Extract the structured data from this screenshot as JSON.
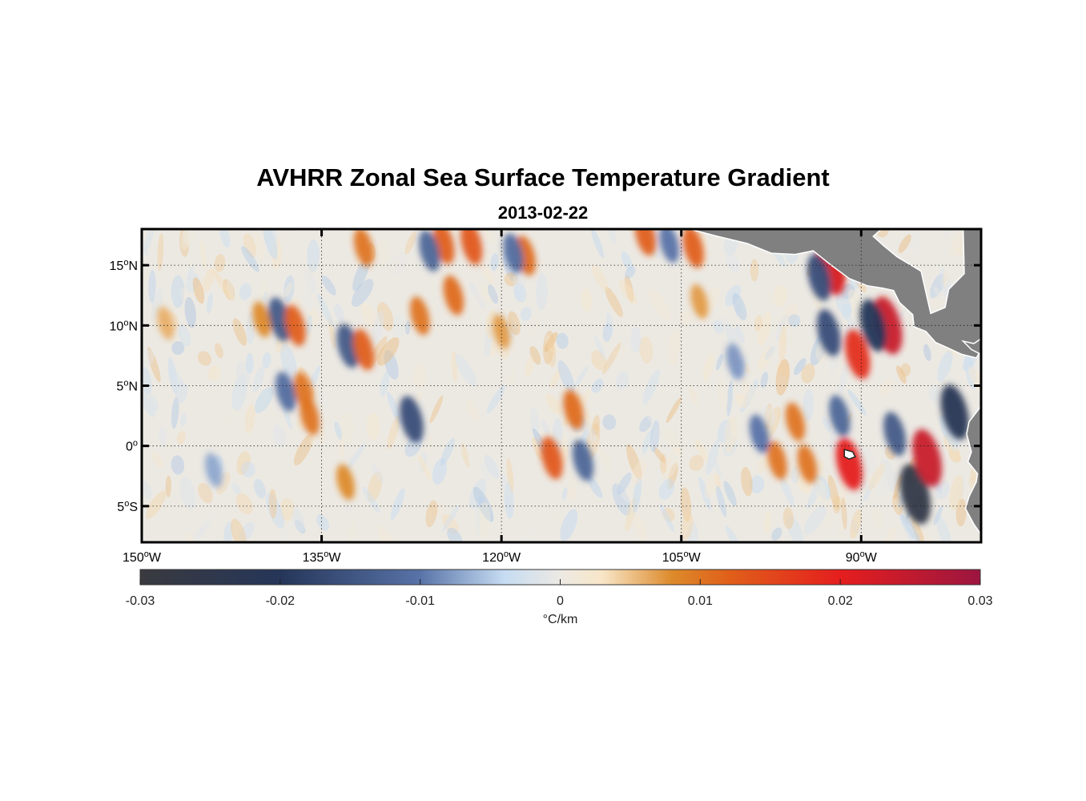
{
  "title": "AVHRR Zonal Sea Surface Temperature Gradient",
  "subtitle": "2013-02-22",
  "map": {
    "lon_range": [
      -150,
      -80
    ],
    "lat_range": [
      -8,
      18
    ],
    "lon_ticks": [
      {
        "value": -150,
        "num": "150",
        "hemi": "W"
      },
      {
        "value": -135,
        "num": "135",
        "hemi": "W"
      },
      {
        "value": -120,
        "num": "120",
        "hemi": "W"
      },
      {
        "value": -105,
        "num": "105",
        "hemi": "W"
      },
      {
        "value": -90,
        "num": "90",
        "hemi": "W"
      }
    ],
    "lat_ticks": [
      {
        "value": 15,
        "num": "15",
        "hemi": "N"
      },
      {
        "value": 10,
        "num": "10",
        "hemi": "N"
      },
      {
        "value": 5,
        "num": "5",
        "hemi": "N"
      },
      {
        "value": 0,
        "num": "0",
        "hemi": ""
      },
      {
        "value": -5,
        "num": "5",
        "hemi": "S"
      }
    ],
    "degree_mark": "o",
    "land_color": "#808080",
    "grid": "dotted"
  },
  "colorbar": {
    "range": [
      -0.03,
      0.03
    ],
    "tick_values": [
      -0.03,
      -0.02,
      -0.01,
      0,
      0.01,
      0.02,
      0.03
    ],
    "tick_labels": [
      "-0.03",
      "-0.02",
      "-0.01",
      "0",
      "0.01",
      "0.02",
      "0.03"
    ],
    "label": "°C/km",
    "stops": [
      {
        "v": -0.03,
        "color": "#3a3a3f"
      },
      {
        "v": -0.02,
        "color": "#253659"
      },
      {
        "v": -0.01,
        "color": "#5873a8"
      },
      {
        "v": -0.004,
        "color": "#c6dcf2"
      },
      {
        "v": 0,
        "color": "#ece9e3"
      },
      {
        "v": 0.003,
        "color": "#f8e6c8"
      },
      {
        "v": 0.008,
        "color": "#dd8a2a"
      },
      {
        "v": 0.012,
        "color": "#e0601a"
      },
      {
        "v": 0.02,
        "color": "#e51e1e"
      },
      {
        "v": 0.03,
        "color": "#9c1640"
      }
    ]
  },
  "field_features": [
    {
      "lon": -85.5,
      "lat": -4.0,
      "val": -0.026
    },
    {
      "lon": -84.5,
      "lat": -1.0,
      "val": 0.024
    },
    {
      "lon": -82.2,
      "lat": 2.8,
      "val": -0.022
    },
    {
      "lon": -87.8,
      "lat": 10.0,
      "val": 0.024
    },
    {
      "lon": -89.0,
      "lat": 10.0,
      "val": -0.02
    },
    {
      "lon": -90.3,
      "lat": 7.6,
      "val": 0.018
    },
    {
      "lon": -91.0,
      "lat": -1.5,
      "val": 0.02
    },
    {
      "lon": -92.5,
      "lat": 14.8,
      "val": 0.022
    },
    {
      "lon": -93.5,
      "lat": 14.0,
      "val": -0.016
    },
    {
      "lon": -92.7,
      "lat": 9.4,
      "val": -0.016
    },
    {
      "lon": -87.2,
      "lat": 1.0,
      "val": -0.014
    },
    {
      "lon": -91.8,
      "lat": 2.5,
      "val": -0.012
    },
    {
      "lon": -138.5,
      "lat": 10.5,
      "val": -0.014
    },
    {
      "lon": -137.2,
      "lat": 10.0,
      "val": 0.012
    },
    {
      "lon": -132.8,
      "lat": 8.3,
      "val": -0.014
    },
    {
      "lon": -131.5,
      "lat": 8.0,
      "val": 0.012
    },
    {
      "lon": -127.5,
      "lat": 2.2,
      "val": -0.016
    },
    {
      "lon": -114.0,
      "lat": 3.0,
      "val": 0.011
    },
    {
      "lon": -115.8,
      "lat": -1.0,
      "val": 0.013
    },
    {
      "lon": -113.2,
      "lat": -1.2,
      "val": -0.012
    },
    {
      "lon": -118.0,
      "lat": 15.8,
      "val": 0.011
    },
    {
      "lon": -122.5,
      "lat": 16.8,
      "val": 0.013
    },
    {
      "lon": -124.8,
      "lat": 16.8,
      "val": 0.012
    },
    {
      "lon": -126.0,
      "lat": 16.2,
      "val": -0.012
    },
    {
      "lon": -131.5,
      "lat": 16.5,
      "val": 0.01
    },
    {
      "lon": -138.0,
      "lat": 4.5,
      "val": -0.011
    },
    {
      "lon": -136.5,
      "lat": 4.5,
      "val": 0.01
    },
    {
      "lon": -136.0,
      "lat": 2.5,
      "val": 0.01
    },
    {
      "lon": -124.0,
      "lat": 12.5,
      "val": 0.011
    },
    {
      "lon": -126.8,
      "lat": 10.8,
      "val": 0.01
    },
    {
      "lon": -104.0,
      "lat": 16.5,
      "val": 0.012
    },
    {
      "lon": -106.0,
      "lat": 16.8,
      "val": -0.01
    },
    {
      "lon": -108.0,
      "lat": 17.5,
      "val": 0.012
    },
    {
      "lon": -119.0,
      "lat": 16.0,
      "val": -0.011
    },
    {
      "lon": -97.0,
      "lat": -1.2,
      "val": 0.01
    },
    {
      "lon": -94.5,
      "lat": -1.5,
      "val": 0.01
    },
    {
      "lon": -133.0,
      "lat": -3.0,
      "val": 0.008
    },
    {
      "lon": -148.0,
      "lat": 10.2,
      "val": 0.006
    },
    {
      "lon": -98.5,
      "lat": 1.0,
      "val": -0.01
    },
    {
      "lon": -95.5,
      "lat": 2.0,
      "val": 0.01
    },
    {
      "lon": -144.0,
      "lat": -2.0,
      "val": -0.007
    },
    {
      "lon": -140.0,
      "lat": 10.5,
      "val": 0.008
    },
    {
      "lon": -120.0,
      "lat": 9.5,
      "val": 0.007
    },
    {
      "lon": -100.5,
      "lat": 7.0,
      "val": -0.008
    },
    {
      "lon": -103.5,
      "lat": 12.0,
      "val": 0.007
    }
  ]
}
